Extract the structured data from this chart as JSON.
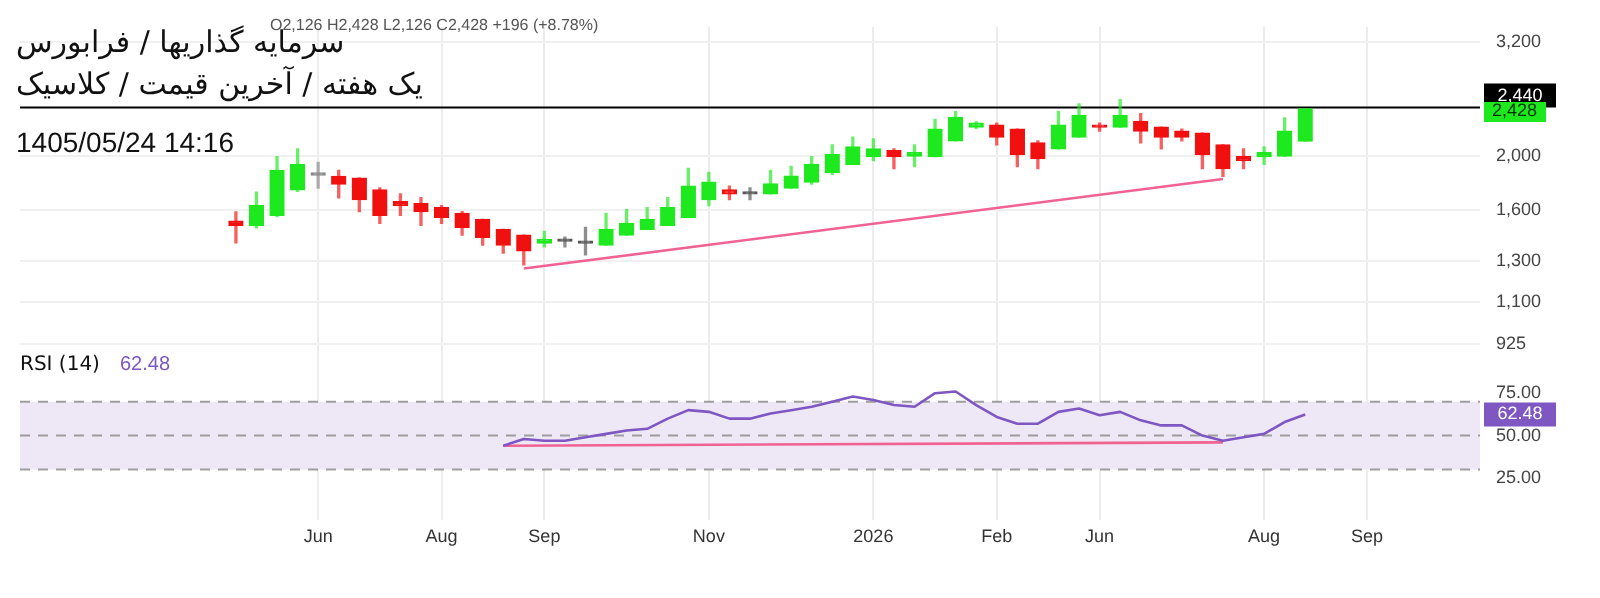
{
  "chart_data": [
    {
      "type": "candlestick",
      "title": "سرمایه گذاریها / فرابورس",
      "subtitle": "یک هفته / آخرین قیمت / کلاسیک",
      "annotations": [
        "O2,126 H2,428 L2,126 C2,428 +196 (+8.78%)",
        "1405/05/24 14:16",
        "2,428"
      ],
      "ohlc": [
        null,
        null,
        null,
        null,
        null,
        null,
        null,
        null,
        null,
        null,
        [
          1530,
          1590,
          1400,
          1504
        ],
        [
          1504,
          1725,
          1490,
          1631
        ],
        [
          1567,
          1995,
          1560,
          1886
        ],
        [
          1740,
          2060,
          1730,
          1930
        ],
        [
          1850,
          1948,
          1754,
          1860
        ],
        [
          1840,
          1886,
          1685,
          1783
        ],
        [
          1826,
          1826,
          1592,
          1672
        ],
        [
          1740,
          1754,
          1517,
          1567
        ],
        [
          1658,
          1712,
          1567,
          1631
        ],
        [
          1645,
          1685,
          1504,
          1592
        ],
        [
          1618,
          1631,
          1517,
          1555
        ],
        [
          1580,
          1592,
          1445,
          1492
        ],
        [
          1542,
          1542,
          1388,
          1433
        ],
        [
          1480,
          1480,
          1343,
          1388
        ],
        [
          1445,
          1445,
          1280,
          1355
        ],
        [
          1399,
          1468,
          1377,
          1420
        ],
        [
          1410,
          1433,
          1377,
          1410
        ],
        [
          1399,
          1492,
          1333,
          1405
        ],
        [
          1388,
          1580,
          1388,
          1480
        ],
        [
          1445,
          1605,
          1445,
          1517
        ],
        [
          1480,
          1618,
          1480,
          1542
        ],
        [
          1504,
          1685,
          1504,
          1618
        ],
        [
          1555,
          1900,
          1555,
          1768
        ],
        [
          1672,
          1870,
          1631,
          1797
        ],
        [
          1740,
          1768,
          1672,
          1712
        ],
        [
          1712,
          1754,
          1672,
          1712
        ],
        [
          1712,
          1886,
          1712,
          1783
        ],
        [
          1754,
          1916,
          1754,
          1841
        ],
        [
          1797,
          1995,
          1783,
          1932
        ],
        [
          1871,
          2094,
          1856,
          2011
        ],
        [
          1932,
          2162,
          1932,
          2077
        ],
        [
          1995,
          2145,
          1963,
          2060
        ],
        [
          2044,
          2060,
          1900,
          1995
        ],
        [
          2000,
          2094,
          1916,
          2027
        ],
        [
          1995,
          2325,
          1995,
          2234
        ],
        [
          2128,
          2400,
          2128,
          2344
        ],
        [
          2252,
          2300,
          2240,
          2288
        ],
        [
          2270,
          2288,
          2094,
          2162
        ],
        [
          2234,
          2234,
          1916,
          2011
        ],
        [
          2111,
          2128,
          1900,
          1979
        ],
        [
          2060,
          2400,
          2060,
          2270
        ],
        [
          2162,
          2478,
          2162,
          2363
        ],
        [
          2270,
          2288,
          2216,
          2252
        ],
        [
          2252,
          2520,
          2252,
          2363
        ],
        [
          2306,
          2381,
          2111,
          2216
        ],
        [
          2252,
          2252,
          2060,
          2162
        ],
        [
          2216,
          2234,
          2128,
          2162
        ],
        [
          2198,
          2198,
          1900,
          2011
        ],
        [
          2094,
          2094,
          1840,
          1900
        ],
        [
          1995,
          2060,
          1900,
          1963
        ],
        [
          1995,
          2077,
          1932,
          2027
        ],
        [
          2000,
          2340,
          2000,
          2216
        ],
        [
          2126,
          2428,
          2126,
          2428
        ],
        null,
        null,
        null,
        null,
        null,
        null,
        null,
        null
      ],
      "colors": [
        null,
        null,
        null,
        null,
        null,
        null,
        null,
        null,
        null,
        null,
        "#f01010",
        "#1ee81e",
        "#1ee81e",
        "#1ee81e",
        "#888888",
        "#f01010",
        "#f01010",
        "#f01010",
        "#f01010",
        "#f01010",
        "#f01010",
        "#f01010",
        "#f01010",
        "#f01010",
        "#f01010",
        "#1ee81e",
        "#555555",
        "#555555",
        "#1ee81e",
        "#1ee81e",
        "#1ee81e",
        "#1ee81e",
        "#1ee81e",
        "#1ee81e",
        "#f01010",
        "#555555",
        "#1ee81e",
        "#1ee81e",
        "#1ee81e",
        "#1ee81e",
        "#1ee81e",
        "#1ee81e",
        "#f01010",
        "#1ee81e",
        "#1ee81e",
        "#1ee81e",
        "#1ee81e",
        "#f01010",
        "#f01010",
        "#f01010",
        "#1ee81e",
        "#1ee81e",
        "#f01010",
        "#1ee81e",
        "#f01010",
        "#f01010",
        "#f01010",
        "#f01010",
        "#f01010",
        "#f01010",
        "#1ee81e",
        "#1ee81e",
        "#1ee81e",
        null,
        null,
        null,
        null,
        null,
        null,
        null,
        null
      ],
      "series": [
        {
          "type": "line",
          "color": "#f06292",
          "values": [
            null,
            null,
            null,
            null,
            null,
            null,
            null,
            null,
            null,
            null,
            null,
            null,
            null,
            null,
            null,
            null,
            null,
            null,
            null,
            null,
            null,
            null,
            null,
            null,
            1260,
            null,
            null,
            null,
            null,
            null,
            null,
            null,
            null,
            null,
            null,
            null,
            null,
            null,
            null,
            null,
            null,
            null,
            null,
            null,
            null,
            null,
            null,
            null,
            null,
            null,
            null,
            null,
            null,
            null,
            null,
            null,
            null,
            null,
            1820,
            null,
            null,
            null,
            null,
            null,
            null,
            null,
            null,
            null,
            null,
            null,
            null
          ]
        }
      ],
      "ref_lines": [
        {
          "axis": "y",
          "value": 2440,
          "label": "2,440",
          "color": "#000000"
        }
      ],
      "log": true,
      "ylim": [
        800,
        3400
      ],
      "yticks": [
        925,
        {
          "value": 1100,
          "label": "1,100"
        },
        {
          "value": 1300,
          "label": "1,300"
        },
        {
          "value": 1600,
          "label": "1,600"
        },
        {
          "value": 2000,
          "label": "2,000"
        },
        {
          "value": 3200,
          "label": "3,200"
        }
      ],
      "grid": true,
      "legend": false,
      "tick_labels": "y"
    },
    {
      "type": "line",
      "title": "RSI (14)",
      "annotations": [
        "62.48",
        {
          "text": "62.48",
          "y": 62.48
        }
      ],
      "categories": [
        null,
        null,
        null,
        null,
        null,
        null,
        null,
        null,
        null,
        null,
        null,
        null,
        null,
        null,
        "Jun",
        null,
        null,
        null,
        null,
        null,
        "Aug",
        null,
        null,
        null,
        null,
        "Sep",
        null,
        null,
        null,
        null,
        null,
        null,
        null,
        "Nov",
        null,
        null,
        null,
        null,
        null,
        null,
        null,
        "2026",
        null,
        null,
        null,
        null,
        null,
        "Feb",
        null,
        null,
        null,
        null,
        "Jun",
        null,
        null,
        null,
        null,
        null,
        null,
        null,
        "Aug",
        null,
        null,
        null,
        null,
        "Sep",
        null,
        null,
        null,
        null,
        null
      ],
      "series": [
        {
          "color": "#7e57c2",
          "values": [
            null,
            null,
            null,
            null,
            null,
            null,
            null,
            null,
            null,
            null,
            null,
            null,
            null,
            null,
            null,
            null,
            null,
            null,
            null,
            null,
            null,
            null,
            null,
            44,
            48,
            47,
            47,
            49,
            51,
            53,
            54,
            60,
            65,
            64,
            60,
            60,
            63,
            65,
            67,
            70,
            73,
            71,
            68,
            67,
            75,
            76,
            68,
            61,
            57,
            57,
            64,
            66,
            62,
            64,
            59,
            56,
            56,
            50,
            47,
            49,
            51,
            58,
            62.48,
            null,
            null,
            null,
            null,
            null,
            null,
            null,
            null
          ]
        },
        {
          "color": "#f06292",
          "values": [
            null,
            null,
            null,
            null,
            null,
            null,
            null,
            null,
            null,
            null,
            null,
            null,
            null,
            null,
            null,
            null,
            null,
            null,
            null,
            null,
            null,
            null,
            null,
            44,
            null,
            null,
            null,
            null,
            null,
            null,
            null,
            null,
            null,
            null,
            null,
            null,
            null,
            null,
            null,
            null,
            null,
            null,
            null,
            null,
            null,
            null,
            null,
            null,
            null,
            null,
            null,
            null,
            null,
            null,
            null,
            null,
            null,
            null,
            46,
            null,
            null,
            null,
            null,
            null,
            null,
            null,
            null,
            null,
            null,
            null,
            null
          ]
        }
      ],
      "bands": [
        {
          "axis": "y",
          "from": 30,
          "to": 70,
          "color": "#ede7f6"
        }
      ],
      "ref_lines": [
        {
          "axis": "y",
          "value": 70,
          "color": "#9e9e9e",
          "line_style": "dashed"
        },
        {
          "axis": "y",
          "value": 50,
          "color": "#9e9e9e",
          "line_style": "dashed"
        },
        {
          "axis": "y",
          "value": 30,
          "color": "#9e9e9e",
          "line_style": "dashed"
        }
      ],
      "ylim": [
        0,
        100
      ],
      "yticks": [
        {
          "value": 25,
          "label": "25.00"
        },
        {
          "value": 50,
          "label": "50.00"
        },
        {
          "value": 75,
          "label": "75.00"
        }
      ],
      "grid": "x",
      "legend": false,
      "marker": "none",
      "line_style": "solid"
    }
  ]
}
